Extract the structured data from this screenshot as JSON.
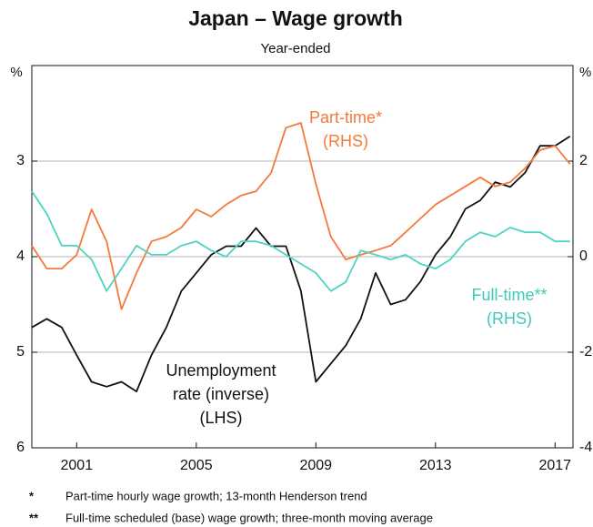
{
  "chart_data": {
    "type": "line",
    "title": "Japan – Wage growth",
    "subtitle": "Year-ended",
    "y_label": "%",
    "y2_label": "%",
    "x": [
      1999.5,
      2000,
      2000.5,
      2001,
      2001.5,
      2002,
      2002.5,
      2003,
      2003.5,
      2004,
      2004.5,
      2005,
      2005.5,
      2006,
      2006.5,
      2007,
      2007.5,
      2008,
      2008.5,
      2009,
      2009.5,
      2010,
      2010.5,
      2011,
      2011.5,
      2012,
      2012.5,
      2013,
      2013.5,
      2014,
      2014.5,
      2015,
      2015.5,
      2016,
      2016.5,
      2017,
      2017.5
    ],
    "xlim": [
      1999.5,
      2017.6
    ],
    "xticks": [
      2001,
      2005,
      2009,
      2013,
      2017
    ],
    "ylim": [
      6,
      2
    ],
    "yticks": [
      3,
      4,
      5,
      6
    ],
    "y2lim": [
      -4,
      4
    ],
    "y2ticks": [
      -4,
      -2,
      0,
      2
    ],
    "grid": true,
    "series": [
      {
        "name": "Unemployment rate (inverse)",
        "color": "#111111",
        "axis": "y",
        "values": [
          4.74,
          4.65,
          4.74,
          5.03,
          5.31,
          5.36,
          5.31,
          5.41,
          5.03,
          4.74,
          4.36,
          4.17,
          3.98,
          3.89,
          3.89,
          3.7,
          3.89,
          3.89,
          4.36,
          5.31,
          5.12,
          4.93,
          4.65,
          4.17,
          4.5,
          4.45,
          4.26,
          3.98,
          3.79,
          3.5,
          3.41,
          3.22,
          3.27,
          3.12,
          2.84,
          2.84,
          2.74
        ]
      },
      {
        "name": "Part-time",
        "color": "#f47a3c",
        "axis": "y2",
        "values": [
          0.23,
          -0.25,
          -0.25,
          0.04,
          0.99,
          0.32,
          -1.1,
          -0.34,
          0.32,
          0.42,
          0.61,
          0.99,
          0.84,
          1.09,
          1.28,
          1.37,
          1.75,
          2.7,
          2.8,
          1.52,
          0.42,
          -0.06,
          0.04,
          0.13,
          0.23,
          0.51,
          0.8,
          1.09,
          1.28,
          1.47,
          1.66,
          1.47,
          1.56,
          1.85,
          2.23,
          2.32,
          1.94
        ]
      },
      {
        "name": "Full-time",
        "color": "#4fd3c4",
        "axis": "y2",
        "values": [
          1.37,
          0.9,
          0.23,
          0.23,
          -0.06,
          -0.72,
          -0.25,
          0.23,
          0.04,
          0.04,
          0.23,
          0.32,
          0.13,
          0,
          0.32,
          0.32,
          0.23,
          0.04,
          -0.15,
          -0.34,
          -0.72,
          -0.53,
          0.13,
          0.04,
          -0.06,
          0.04,
          -0.15,
          -0.25,
          -0.06,
          0.32,
          0.51,
          0.42,
          0.61,
          0.51,
          0.51,
          0.32,
          0.32
        ]
      }
    ],
    "annotations": [
      {
        "lines": [
          "Part-time*",
          "(RHS)"
        ],
        "color": "#f47a3c"
      },
      {
        "lines": [
          "Full-time**",
          "(RHS)"
        ],
        "color": "#3fc9b9"
      },
      {
        "lines": [
          "Unemployment",
          "rate (inverse)",
          "(LHS)"
        ],
        "color": "#111111"
      }
    ],
    "notes": [
      {
        "marker": "*",
        "text": "Part-time hourly wage growth; 13-month Henderson trend"
      },
      {
        "marker": "**",
        "text": "Full-time scheduled (base) wage growth; three-month moving average"
      }
    ]
  }
}
